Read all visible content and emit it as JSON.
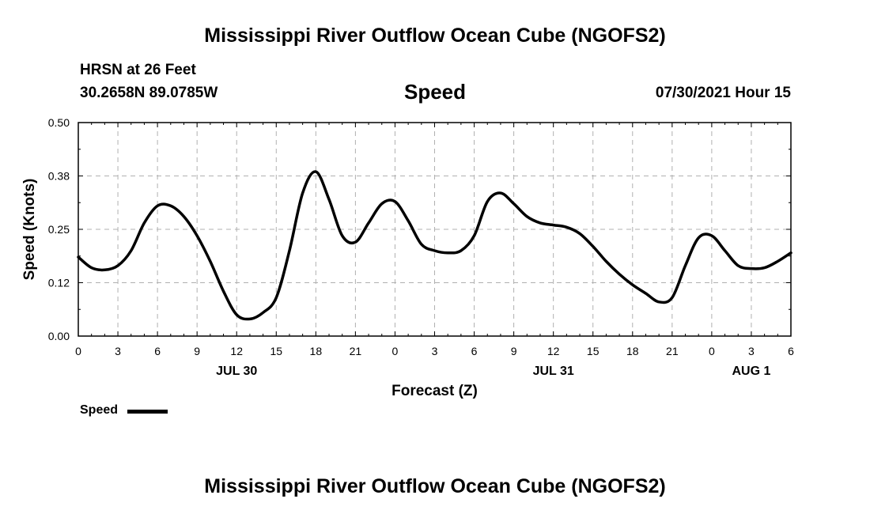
{
  "header": {
    "title_top": "Mississippi River Outflow Ocean Cube (NGOFS2)",
    "station": "HRSN at 26 Feet",
    "coords": "30.2658N  89.0785W",
    "datetime": "07/30/2021 Hour 15",
    "title_bottom": "Mississippi River Outflow Ocean Cube (NGOFS2)"
  },
  "legend": {
    "label": "Speed"
  },
  "chart_data": {
    "type": "line",
    "title": "Speed",
    "xlabel": "Forecast (Z)",
    "ylabel": "Speed (Knots)",
    "xlim": [
      0,
      54
    ],
    "ylim": [
      0,
      0.5
    ],
    "grid": true,
    "x_ticks": [
      0,
      3,
      6,
      9,
      12,
      15,
      18,
      21,
      24,
      27,
      30,
      33,
      36,
      39,
      42,
      45,
      48,
      51,
      54
    ],
    "x_tick_labels": [
      "0",
      "3",
      "6",
      "9",
      "12",
      "15",
      "18",
      "21",
      "0",
      "3",
      "6",
      "9",
      "12",
      "15",
      "18",
      "21",
      "0",
      "3",
      "6"
    ],
    "y_ticks": [
      0.0,
      0.125,
      0.25,
      0.375,
      0.5
    ],
    "y_tick_labels": [
      "0.00",
      "0.12",
      "0.25",
      "0.38",
      "0.50"
    ],
    "date_labels": [
      {
        "x": 12,
        "label": "JUL 30"
      },
      {
        "x": 36,
        "label": "JUL 31"
      },
      {
        "x": 51,
        "label": "AUG 1"
      }
    ],
    "series": [
      {
        "name": "Speed",
        "color": "#000000",
        "x": [
          0,
          1,
          2,
          3,
          4,
          5,
          6,
          7,
          8,
          9,
          10,
          11,
          12,
          13,
          14,
          15,
          16,
          17,
          18,
          19,
          20,
          21,
          22,
          23,
          24,
          25,
          26,
          27,
          28,
          29,
          30,
          31,
          32,
          33,
          34,
          35,
          36,
          37,
          38,
          39,
          40,
          41,
          42,
          43,
          44,
          45,
          46,
          47,
          48,
          49,
          50,
          51,
          52,
          53,
          54
        ],
        "y": [
          0.185,
          0.16,
          0.155,
          0.165,
          0.2,
          0.265,
          0.305,
          0.305,
          0.28,
          0.235,
          0.175,
          0.105,
          0.05,
          0.04,
          0.055,
          0.09,
          0.2,
          0.335,
          0.385,
          0.32,
          0.235,
          0.22,
          0.265,
          0.31,
          0.315,
          0.27,
          0.215,
          0.2,
          0.195,
          0.2,
          0.235,
          0.315,
          0.335,
          0.31,
          0.28,
          0.265,
          0.26,
          0.255,
          0.24,
          0.21,
          0.175,
          0.145,
          0.12,
          0.1,
          0.08,
          0.09,
          0.165,
          0.23,
          0.235,
          0.2,
          0.165,
          0.158,
          0.16,
          0.175,
          0.195
        ]
      }
    ]
  }
}
